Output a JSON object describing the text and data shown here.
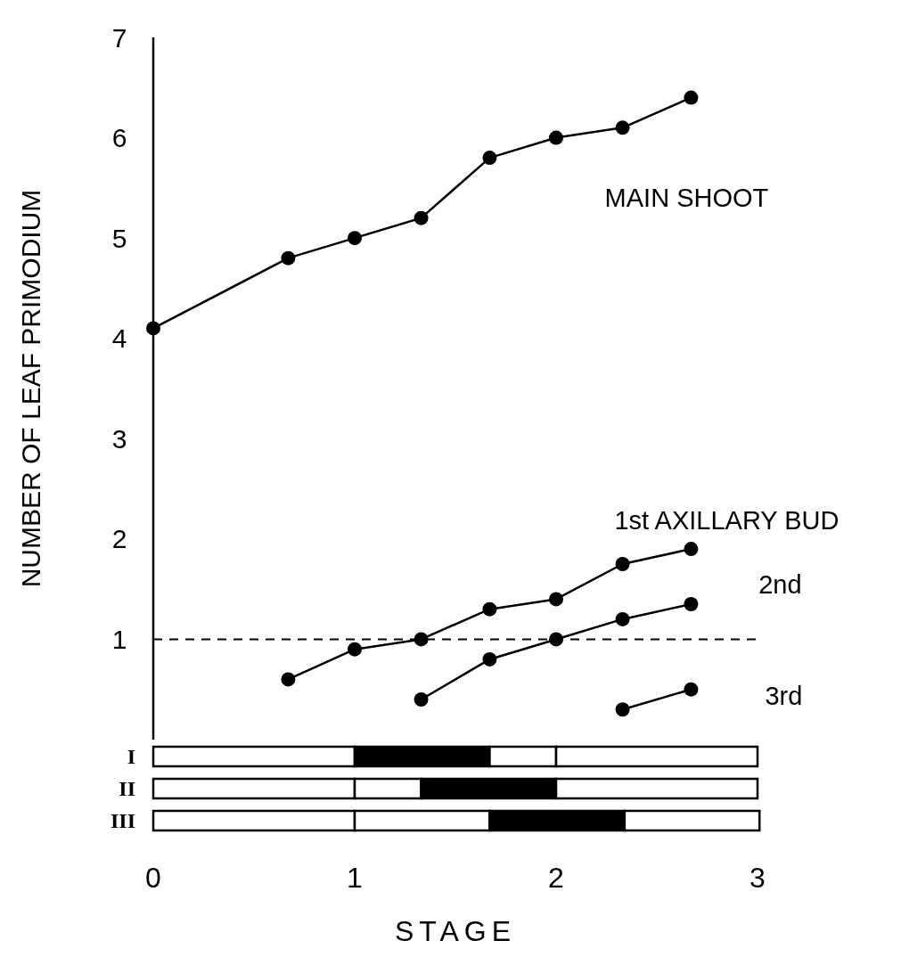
{
  "chart_data": [
    {
      "type": "line",
      "ylabel": "NUMBER OF LEAF PRIMODIUM",
      "xlim": [
        0,
        3
      ],
      "ylim": [
        0,
        7
      ],
      "yticks": [
        1,
        2,
        3,
        4,
        5,
        6,
        7
      ],
      "tick_labels": "y",
      "marker": "circle",
      "line_style": "solid",
      "ref_lines": [
        {
          "axis": "y",
          "value": 1,
          "line_style": "dashed",
          "color": "#000000"
        }
      ],
      "series": [
        {
          "name": "MAIN SHOOT",
          "color": "#000000",
          "x": [
            0,
            0.67,
            1,
            1.33,
            1.67,
            2,
            2.33,
            2.67
          ],
          "values": [
            4.1,
            4.8,
            5.0,
            5.2,
            5.8,
            6.0,
            6.1,
            6.4
          ]
        },
        {
          "name": "1st AXILLARY BUD",
          "color": "#000000",
          "x": [
            0.67,
            1,
            1.33,
            1.67,
            2,
            2.33,
            2.67
          ],
          "values": [
            0.6,
            0.9,
            1.0,
            1.3,
            1.4,
            1.75,
            1.9
          ]
        },
        {
          "name": "2nd",
          "color": "#000000",
          "x": [
            1.33,
            1.67,
            2,
            2.33,
            2.67
          ],
          "values": [
            0.4,
            0.8,
            1.0,
            1.2,
            1.35
          ]
        },
        {
          "name": "3rd",
          "color": "#000000",
          "x": [
            2.33,
            2.67
          ],
          "values": [
            0.3,
            0.5
          ]
        }
      ]
    },
    {
      "type": "bar",
      "orientation": "horizontal",
      "stacked": true,
      "categories": [
        "I",
        "II",
        "III"
      ],
      "xlabel": "STAGE",
      "xlim": [
        0,
        3
      ],
      "xticks": [
        0,
        1,
        2,
        3
      ],
      "series": [
        {
          "colors": [
            "#ffffff",
            "#ffffff",
            "#ffffff"
          ],
          "values": [
            1,
            1,
            1
          ]
        },
        {
          "colors": [
            "#000000",
            "#ffffff",
            "#ffffff"
          ],
          "values": [
            0.67,
            0.33,
            0.67
          ]
        },
        {
          "colors": [
            "#ffffff",
            "#000000",
            "#000000"
          ],
          "values": [
            0.33,
            0.67,
            0.67
          ]
        },
        {
          "colors": [
            "#ffffff",
            "#ffffff",
            "#ffffff"
          ],
          "values": [
            1,
            1,
            0.67
          ]
        }
      ]
    }
  ]
}
